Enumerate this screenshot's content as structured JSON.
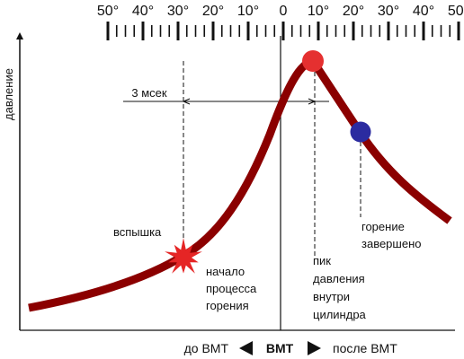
{
  "degree_scale": {
    "labels": [
      "50°",
      "40°",
      "30°",
      "20°",
      "10°",
      "0",
      "10°",
      "20°",
      "30°",
      "40°",
      "50°"
    ]
  },
  "axis": {
    "y_label": "давление"
  },
  "annotations": {
    "interval": "3 мсек",
    "spark": "вспышка",
    "combustion_start": [
      "начало",
      "процесса",
      "горения"
    ],
    "peak_pressure": [
      "пик",
      "давления",
      "внутри",
      "цилиндра"
    ],
    "combustion_end": [
      "горение",
      "завершено"
    ]
  },
  "bottom": {
    "before": "до ВМТ",
    "tdc": "ВМТ",
    "after": "после ВМТ"
  },
  "colors": {
    "curve": "#8b0000",
    "peak_marker": "#e53030",
    "end_marker": "#2b2ba0",
    "spark": "#e52525",
    "ink": "#111111"
  }
}
